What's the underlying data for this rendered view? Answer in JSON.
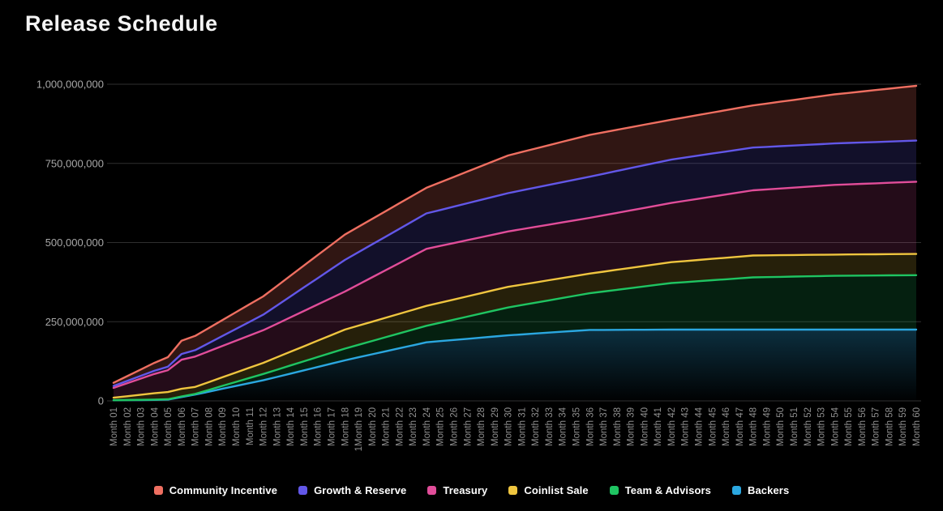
{
  "page": {
    "background": "#000000"
  },
  "header": {
    "title": "Release Schedule"
  },
  "chart_data": {
    "type": "area",
    "title": "Release Schedule",
    "stacked_cumulative": true,
    "note": "Lines are cumulative stacked release totals (tokens); values estimated from gridlines",
    "grid": "horizontal",
    "legend_position": "bottom",
    "y_max": 1000000000,
    "y_tick_values": [
      0,
      250000000,
      500000000,
      750000000,
      1000000000
    ],
    "y_tick_labels": [
      "0",
      "250,000,000",
      "500,000,000",
      "750,000,000",
      "1,000,000,000"
    ],
    "x_categories": [
      "Month 01",
      "Month 02",
      "Month 03",
      "Month 04",
      "Month 05",
      "Month 06",
      "Month 07",
      "Month 08",
      "Month 09",
      "Month 10",
      "Month 11",
      "Month 12",
      "Month 13",
      "Month 14",
      "Month 15",
      "Month 16",
      "Month 17",
      "Month 18",
      "1Month 19",
      "Month 20",
      "Month 21",
      "Month 22",
      "Month 23",
      "Month 24",
      "Month 25",
      "Month 26",
      "Month 27",
      "Month 28",
      "Month 29",
      "Month 30",
      "Month 31",
      "Month 32",
      "Month 33",
      "Month 34",
      "Month 35",
      "Month 36",
      "Month 37",
      "Month 38",
      "Month 39",
      "Month 40",
      "Month 41",
      "Month 42",
      "Month 43",
      "Month 44",
      "Month 45",
      "Month 46",
      "Month 47",
      "Month 48",
      "Month 49",
      "Month 50",
      "Month 51",
      "Month 52",
      "Month 53",
      "Month 54",
      "Month 55",
      "Month 56",
      "Month 57",
      "Month 58",
      "Month 59",
      "Month 60"
    ],
    "keypoint_months": [
      1,
      4,
      5,
      6,
      7,
      12,
      18,
      24,
      30,
      36,
      42,
      48,
      54,
      60
    ],
    "series": [
      {
        "name": "Community Incentive",
        "color": "#ef6f61",
        "fill_opacity": 0.2,
        "cumulative_values": [
          57000000,
          120000000,
          138000000,
          190000000,
          205000000,
          330000000,
          525000000,
          673000000,
          775000000,
          840000000,
          888000000,
          933000000,
          968000000,
          995000000
        ]
      },
      {
        "name": "Growth & Reserve",
        "color": "#6257e8",
        "fill_opacity": 0.18,
        "cumulative_values": [
          47000000,
          95000000,
          108000000,
          148000000,
          160000000,
          272000000,
          445000000,
          592000000,
          656000000,
          708000000,
          762000000,
          800000000,
          813000000,
          822000000
        ]
      },
      {
        "name": "Treasury",
        "color": "#e14d99",
        "fill_opacity": 0.16,
        "cumulative_values": [
          41000000,
          85000000,
          97000000,
          130000000,
          140000000,
          223000000,
          345000000,
          480000000,
          535000000,
          578000000,
          625000000,
          665000000,
          682000000,
          692000000
        ]
      },
      {
        "name": "Coinlist Sale",
        "color": "#efc53f",
        "fill_opacity": 0.16,
        "cumulative_values": [
          10000000,
          24000000,
          28000000,
          38000000,
          44000000,
          120000000,
          225000000,
          300000000,
          360000000,
          402000000,
          438000000,
          459000000,
          462000000,
          464000000
        ]
      },
      {
        "name": "Team & Advisors",
        "color": "#1fc462",
        "fill_opacity": 0.16,
        "cumulative_values": [
          2000000,
          4000000,
          5000000,
          14000000,
          22000000,
          85000000,
          165000000,
          237000000,
          295000000,
          340000000,
          372000000,
          390000000,
          395000000,
          397000000
        ]
      },
      {
        "name": "Backers",
        "color": "#2ba7e0",
        "fill_opacity": 0.28,
        "gradient_fill": true,
        "cumulative_values": [
          2000000,
          3000000,
          4000000,
          12000000,
          20000000,
          65000000,
          128000000,
          185000000,
          207000000,
          224000000,
          225000000,
          225000000,
          225000000,
          225000000
        ]
      }
    ],
    "style": {
      "gridline_color": "#2f2f2f",
      "y_label_color": "#a8a8a8",
      "x_label_color": "#8f8f8f",
      "line_width": 2.4
    }
  }
}
